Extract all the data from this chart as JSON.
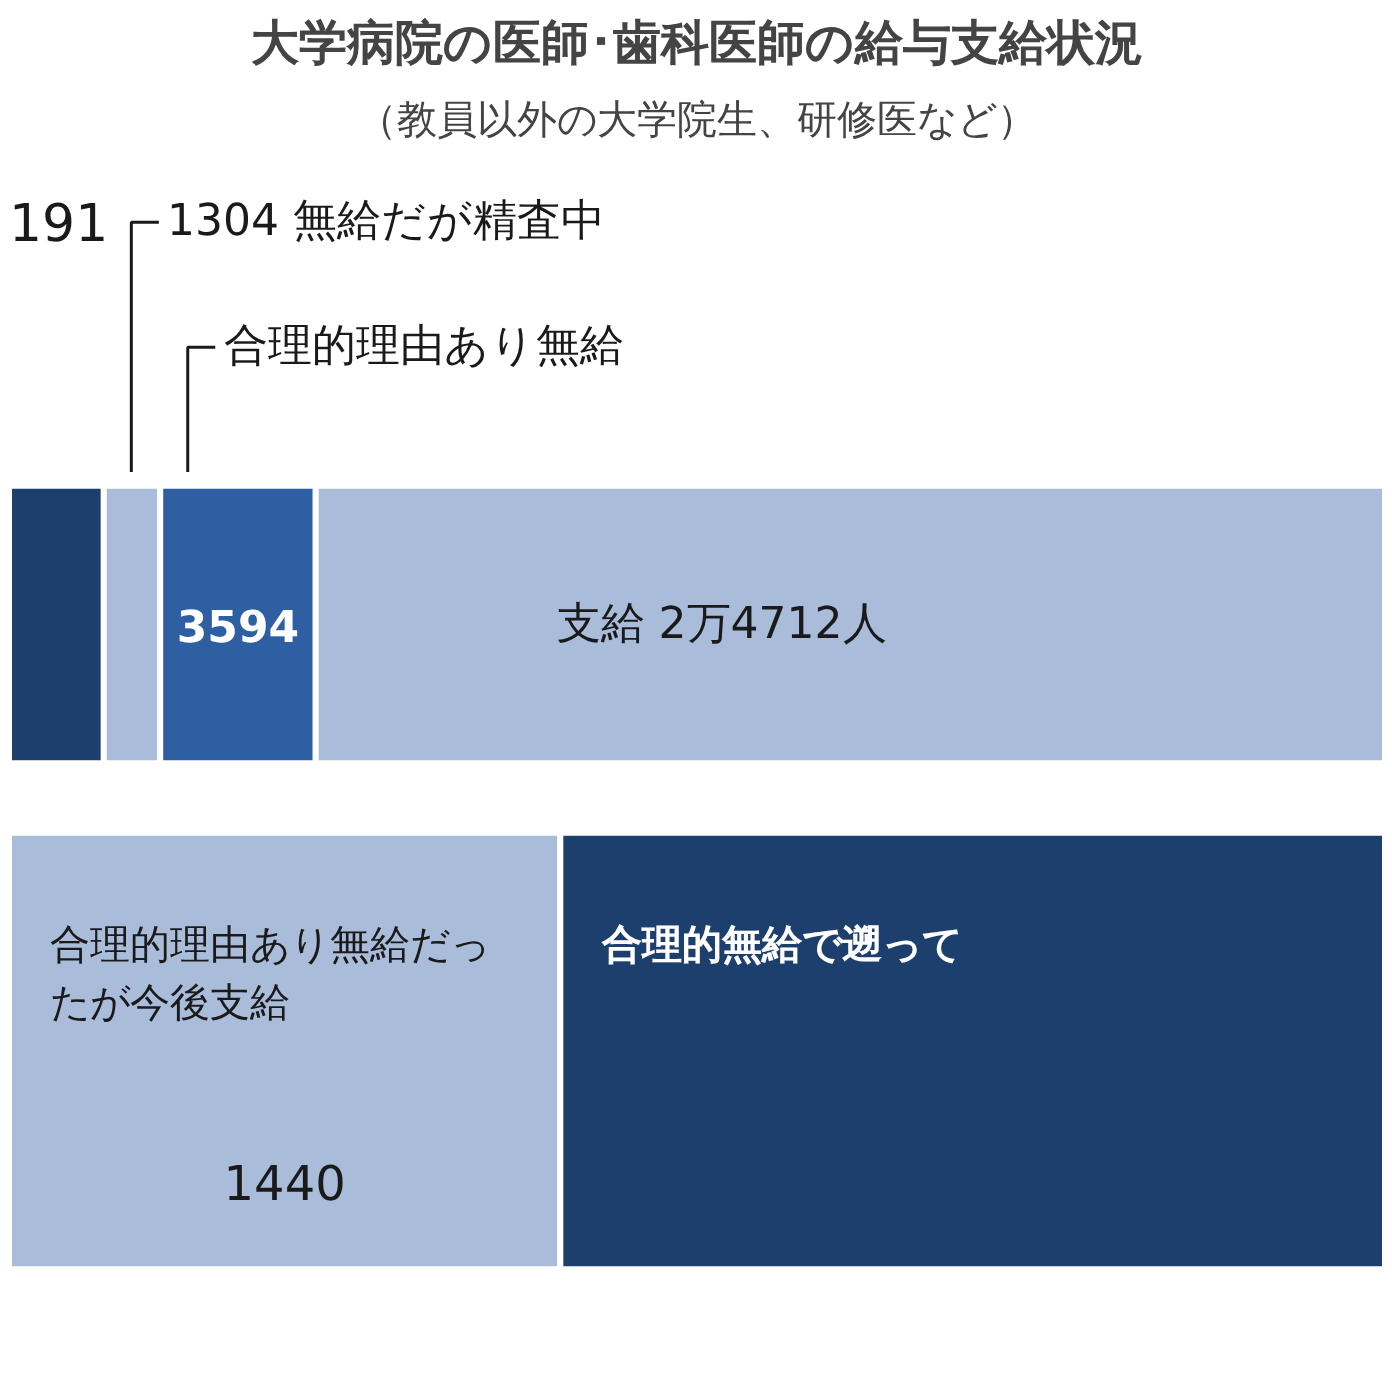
{
  "chart_data": [
    {
      "type": "bar",
      "orientation": "horizontal",
      "stacked": true,
      "title": "大学病院の医師･歯科医師の給与支給状況",
      "subtitle": "（教員以外の大学院生、研修医など）",
      "categories": [
        null
      ],
      "xlim": [
        0,
        31801
      ],
      "tick_labels": false,
      "grid": false,
      "series": [
        {
          "color": "#1d3f6e",
          "values": [
            2191
          ],
          "value_labels": [
            null
          ]
        },
        {
          "color": "#a9bcd9",
          "values": [
            1304
          ],
          "value_labels": [
            null
          ]
        },
        {
          "color": "#2e5fa3",
          "values": [
            3594
          ],
          "value_labels": [
            "3594"
          ]
        },
        {
          "color": "#a9bcd9",
          "values": [
            24712
          ],
          "value_labels": [
            "支給  2万4712人"
          ]
        }
      ],
      "annotations": [
        "191",
        "1304 無給だが精査中",
        "合理的理由あり無給"
      ]
    },
    {
      "type": "bar",
      "orientation": "horizontal",
      "stacked": true,
      "categories": [
        null
      ],
      "xlim": [
        0,
        3594
      ],
      "tick_labels": false,
      "grid": false,
      "series": [
        {
          "color": "#a9bcd9",
          "values": [
            1440
          ],
          "value_labels": [
            "1440"
          ]
        },
        {
          "color": "#1d3f6e",
          "values": [
            2154
          ],
          "value_labels": [
            null
          ]
        }
      ],
      "annotations": [
        "合理的理由あり無給だったが今後支給",
        "合理的無給で遡って"
      ]
    }
  ]
}
